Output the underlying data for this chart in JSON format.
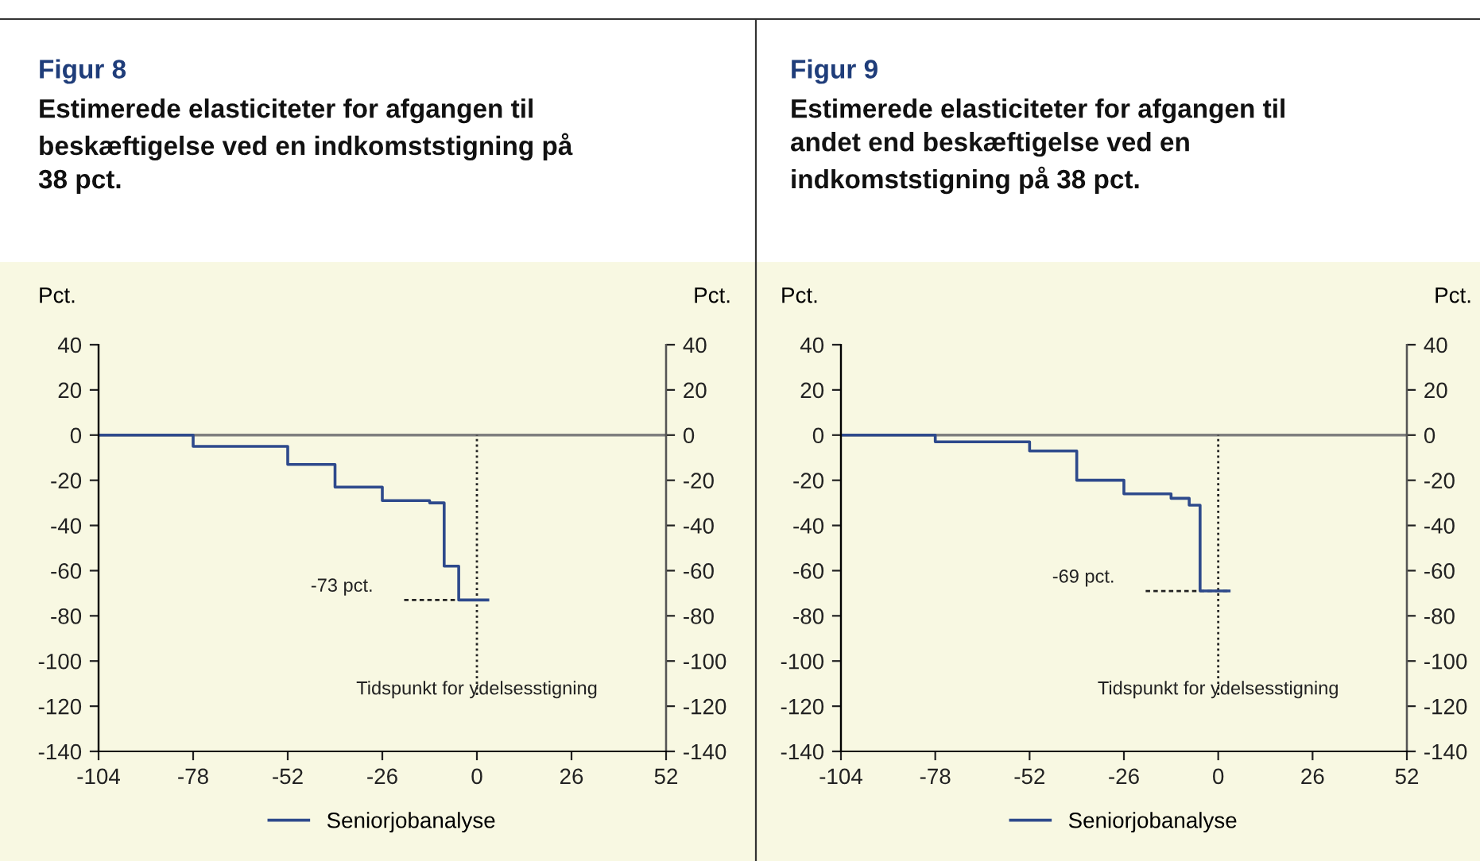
{
  "chart_data": [
    {
      "type": "step",
      "title": "Figur 8",
      "subtitle": "Estimerede elasticiteter for afgangen til\nbeskæftigelse ved en indkomststigning på\n38 pct.",
      "ylabel": "Pct.",
      "y2label": "Pct.",
      "series": [
        {
          "name": "Seniorjobanalyse",
          "color": "#2e4a8c",
          "x": [
            -104,
            -78,
            -52,
            -39,
            -26,
            -13,
            -9,
            -5,
            3
          ],
          "values": [
            0,
            -5,
            -13,
            -23,
            -29,
            -30,
            -58,
            -73,
            -73
          ]
        }
      ],
      "xlim": [
        -104,
        52
      ],
      "xticks": [
        -104,
        -78,
        -52,
        -26,
        0,
        26,
        52
      ],
      "ylim": [
        -140,
        40
      ],
      "yticks": [
        -140,
        -120,
        -100,
        -80,
        -60,
        -40,
        -20,
        0,
        20,
        40
      ],
      "y2lim": [
        -140,
        40
      ],
      "y2ticks": [
        -140,
        -120,
        -100,
        -80,
        -60,
        -40,
        -20,
        0,
        20,
        40
      ],
      "ref_lines": [
        {
          "axis": "y",
          "value": 0,
          "color": "#7f7f7f",
          "line_style": "solid"
        },
        {
          "axis": "x",
          "value": 0,
          "label": "Tidspunkt for ydelsesstigning",
          "color": "#222222",
          "line_style": "dotted"
        },
        {
          "axis": "y",
          "value": -73,
          "label": "-73 pct.",
          "color": "#222222",
          "line_style": "dashed"
        }
      ],
      "legend": "bottom",
      "grid": false
    },
    {
      "type": "step",
      "title": "Figur 9",
      "subtitle": "Estimerede elasticiteter for afgangen til\nandet end beskæftigelse ved en\nindkomststigning på 38 pct.",
      "ylabel": "Pct.",
      "y2label": "Pct.",
      "series": [
        {
          "name": "Seniorjobanalyse",
          "color": "#2e4a8c",
          "x": [
            -104,
            -78,
            -52,
            -39,
            -26,
            -13,
            -8,
            -5,
            3
          ],
          "values": [
            0,
            -3,
            -7,
            -20,
            -26,
            -28,
            -31,
            -69,
            -69
          ]
        }
      ],
      "xlim": [
        -104,
        52
      ],
      "xticks": [
        -104,
        -78,
        -52,
        -26,
        0,
        26,
        52
      ],
      "ylim": [
        -140,
        40
      ],
      "yticks": [
        -140,
        -120,
        -100,
        -80,
        -60,
        -40,
        -20,
        0,
        20,
        40
      ],
      "y2lim": [
        -140,
        40
      ],
      "y2ticks": [
        -140,
        -120,
        -100,
        -80,
        -60,
        -40,
        -20,
        0,
        20,
        40
      ],
      "ref_lines": [
        {
          "axis": "y",
          "value": 0,
          "color": "#7f7f7f",
          "line_style": "solid"
        },
        {
          "axis": "x",
          "value": 0,
          "label": "Tidspunkt for ydelsesstigning",
          "color": "#222222",
          "line_style": "dotted"
        },
        {
          "axis": "y",
          "value": -69,
          "label": "-69 pct.",
          "color": "#222222",
          "line_style": "dashed"
        }
      ],
      "legend": "bottom",
      "grid": false
    }
  ]
}
